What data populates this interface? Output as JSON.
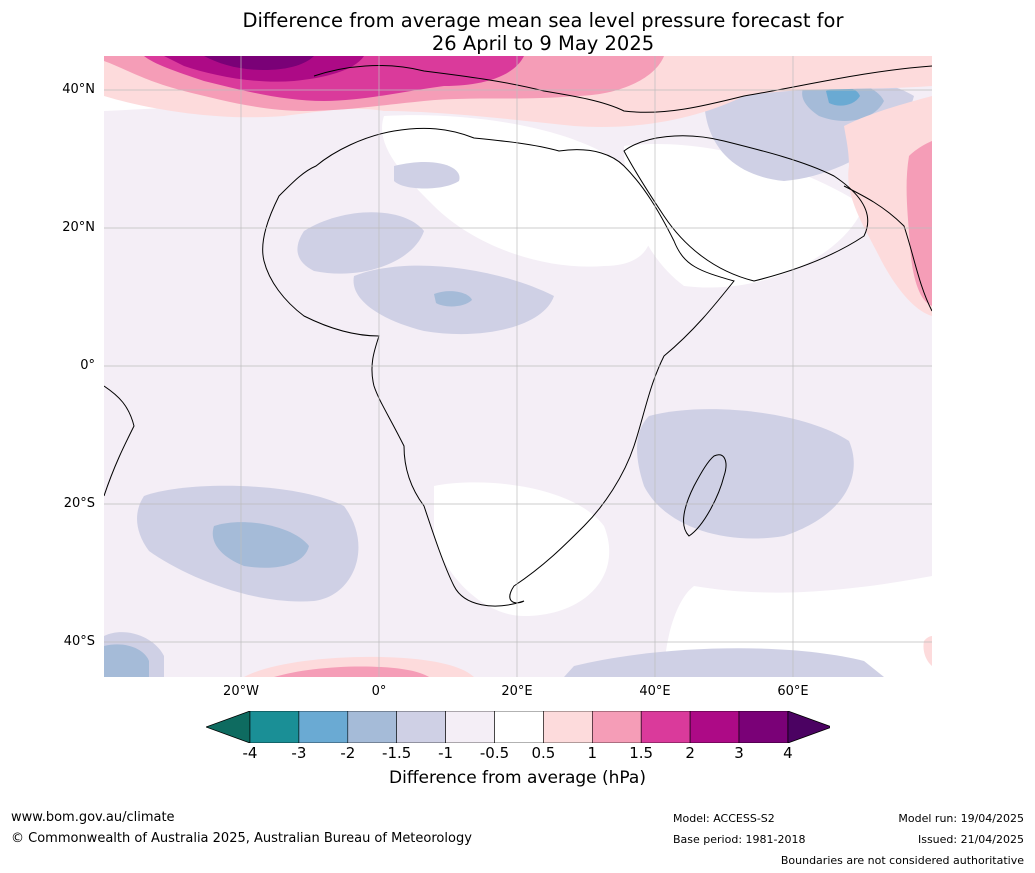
{
  "title_line1": "Difference from average mean sea level pressure forecast for",
  "title_line2": "26 April to 9 May 2025",
  "map": {
    "lat_labels": [
      "40°N",
      "20°N",
      "0°",
      "20°S",
      "40°S"
    ],
    "lon_labels": [
      "20°W",
      "0°",
      "20°E",
      "40°E",
      "60°E"
    ]
  },
  "colorbar": {
    "ticks": [
      "-4",
      "-3",
      "-2",
      "-1.5",
      "-1",
      "-0.5",
      "0.5",
      "1",
      "1.5",
      "2",
      "3",
      "4"
    ],
    "colors": [
      "#0e6b60",
      "#1a8f96",
      "#6aaad3",
      "#a5bbd8",
      "#cfd0e5",
      "#f4eef6",
      "#ffffff",
      "#fddbdc",
      "#f59db7",
      "#da3a9b",
      "#ad0a86",
      "#7a0177",
      "#4b0262"
    ],
    "label": "Difference from average (hPa)"
  },
  "footer": {
    "website": "www.bom.gov.au/climate",
    "copyright": "© Commonwealth of Australia 2025, Australian Bureau of Meteorology",
    "model": "Model: ACCESS-S2",
    "base_period": "Base period: 1981-2018",
    "model_run": "Model run: 19/04/2025",
    "issued": "Issued: 21/04/2025",
    "disclaimer": "Boundaries are not considered authoritative"
  }
}
